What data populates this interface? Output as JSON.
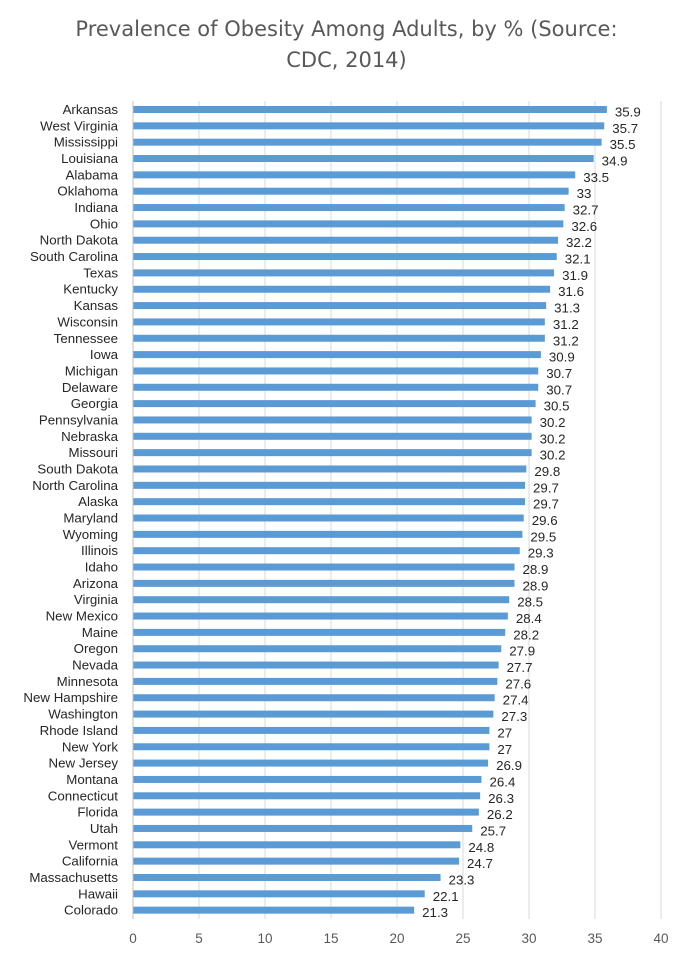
{
  "chart_data": {
    "type": "bar",
    "orientation": "horizontal",
    "title_line1": "Prevalence of Obesity Among Adults, by % (Source:",
    "title_line2": "CDC, 2014)",
    "categories": [
      "Arkansas",
      "West Virginia",
      "Mississippi",
      "Louisiana",
      "Alabama",
      "Oklahoma",
      "Indiana",
      "Ohio",
      "North Dakota",
      "South Carolina",
      "Texas",
      "Kentucky",
      "Kansas",
      "Wisconsin",
      "Tennessee",
      "Iowa",
      "Michigan",
      "Delaware",
      "Georgia",
      "Pennsylvania",
      "Nebraska",
      "Missouri",
      "South Dakota",
      "North Carolina",
      "Alaska",
      "Maryland",
      "Wyoming",
      "Illinois",
      "Idaho",
      "Arizona",
      "Virginia",
      "New Mexico",
      "Maine",
      "Oregon",
      "Nevada",
      "Minnesota",
      "New Hampshire",
      "Washington",
      "Rhode Island",
      "New York",
      "New Jersey",
      "Montana",
      "Connecticut",
      "Florida",
      "Utah",
      "Vermont",
      "California",
      "Massachusetts",
      "Hawaii",
      "Colorado"
    ],
    "values": [
      35.9,
      35.7,
      35.5,
      34.9,
      33.5,
      33,
      32.7,
      32.6,
      32.2,
      32.1,
      31.9,
      31.6,
      31.3,
      31.2,
      31.2,
      30.9,
      30.7,
      30.7,
      30.5,
      30.2,
      30.2,
      30.2,
      29.8,
      29.7,
      29.7,
      29.6,
      29.5,
      29.3,
      28.9,
      28.9,
      28.5,
      28.4,
      28.2,
      27.9,
      27.7,
      27.6,
      27.4,
      27.3,
      27,
      27,
      26.9,
      26.4,
      26.3,
      26.2,
      25.7,
      24.8,
      24.7,
      23.3,
      22.1,
      21.3
    ],
    "xlim": [
      0,
      40
    ],
    "xticks": [
      0,
      5,
      10,
      15,
      20,
      25,
      30,
      35,
      40
    ],
    "grid": true,
    "bar_color": "#5b9bd5",
    "grid_color": "#d9d9d9"
  }
}
